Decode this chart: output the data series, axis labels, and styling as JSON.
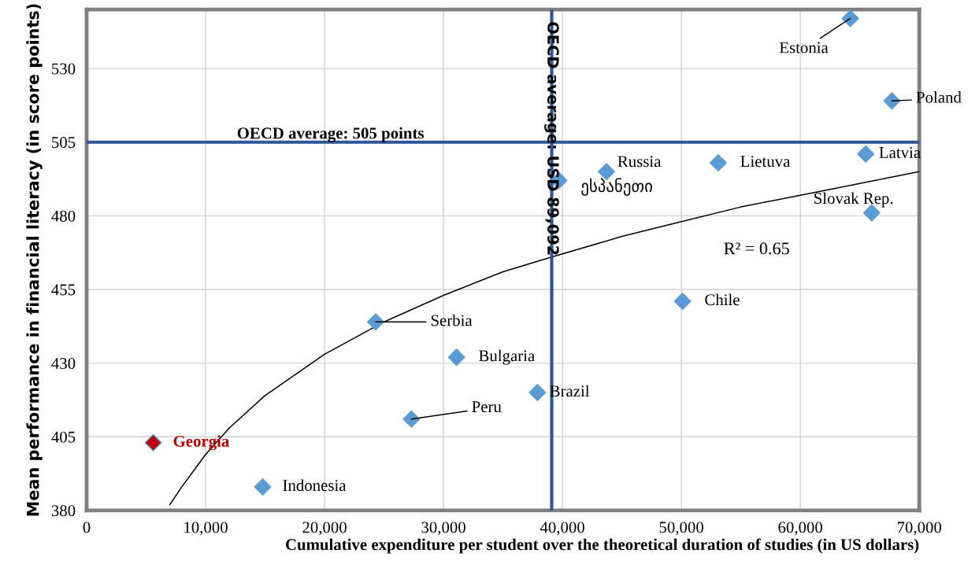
{
  "chart_data": {
    "type": "scatter",
    "xlabel": "Cumulative expenditure per student over the theoretical duration of studies (in US dollars)",
    "ylabel": "Mean performance in financial literacy (in score points)",
    "xlim": [
      0,
      70000
    ],
    "xticks": [
      {
        "value": 0,
        "label": "0"
      },
      {
        "value": 10000,
        "label": "10,000"
      },
      {
        "value": 20000,
        "label": "20,000"
      },
      {
        "value": 30000,
        "label": "30,000"
      },
      {
        "value": 40000,
        "label": "40,000"
      },
      {
        "value": 50000,
        "label": "50,000"
      },
      {
        "value": 60000,
        "label": "60,000"
      },
      {
        "value": 70000,
        "label": "70,000"
      }
    ],
    "ylim": [
      380,
      550
    ],
    "yticks": [
      380,
      405,
      430,
      455,
      480,
      505,
      530
    ],
    "grid": true,
    "legend": false,
    "marker": "diamond",
    "series": [
      {
        "name": "Georgia",
        "color": "#c00000",
        "x": [
          5600
        ],
        "values": [
          403
        ]
      },
      {
        "name": "Indonesia",
        "color": "#5b9bd5",
        "x": [
          14800
        ],
        "values": [
          388
        ]
      },
      {
        "name": "Serbia",
        "color": "#5b9bd5",
        "x": [
          24300
        ],
        "values": [
          444
        ]
      },
      {
        "name": "Peru",
        "color": "#5b9bd5",
        "x": [
          27300
        ],
        "values": [
          411
        ]
      },
      {
        "name": "Bulgaria",
        "color": "#5b9bd5",
        "x": [
          31100
        ],
        "values": [
          432
        ]
      },
      {
        "name": "Brazil",
        "color": "#5b9bd5",
        "x": [
          37900
        ],
        "values": [
          420
        ]
      },
      {
        "name": "ესპანეთი",
        "color": "#5b9bd5",
        "x": [
          39700
        ],
        "values": [
          492
        ]
      },
      {
        "name": "Russia",
        "color": "#5b9bd5",
        "x": [
          43700
        ],
        "values": [
          495
        ]
      },
      {
        "name": "Chile",
        "color": "#5b9bd5",
        "x": [
          50100
        ],
        "values": [
          451
        ]
      },
      {
        "name": "Lietuva",
        "color": "#5b9bd5",
        "x": [
          53100
        ],
        "values": [
          498
        ]
      },
      {
        "name": "Estonia",
        "color": "#5b9bd5",
        "x": [
          64200
        ],
        "values": [
          547
        ]
      },
      {
        "name": "Latvia",
        "color": "#5b9bd5",
        "x": [
          65500
        ],
        "values": [
          501
        ]
      },
      {
        "name": "Slovak Rep.",
        "color": "#5b9bd5",
        "x": [
          66000
        ],
        "values": [
          481
        ]
      },
      {
        "name": "Poland",
        "color": "#5b9bd5",
        "x": [
          67700
        ],
        "values": [
          519
        ]
      },
      {
        "type": "line",
        "color": "#000000",
        "marker": "none",
        "x": [
          7000,
          8000,
          10000,
          12000,
          15000,
          20000,
          25000,
          30000,
          35000,
          39100,
          45000,
          50000,
          55000,
          60000,
          65000,
          70000
        ],
        "values": [
          382,
          388,
          399,
          408,
          419,
          433,
          444,
          453,
          461,
          466,
          473,
          478,
          483,
          487,
          491,
          495
        ]
      }
    ],
    "ref_lines": [
      {
        "axis": "y",
        "value": 505,
        "label": "OECD average: 505 points",
        "color": "#2f5597"
      },
      {
        "axis": "x",
        "value": 39100,
        "label": "OECD average: USD 89,092",
        "color": "#2f5597"
      }
    ],
    "annotations": [
      "R² = 0.65"
    ]
  }
}
